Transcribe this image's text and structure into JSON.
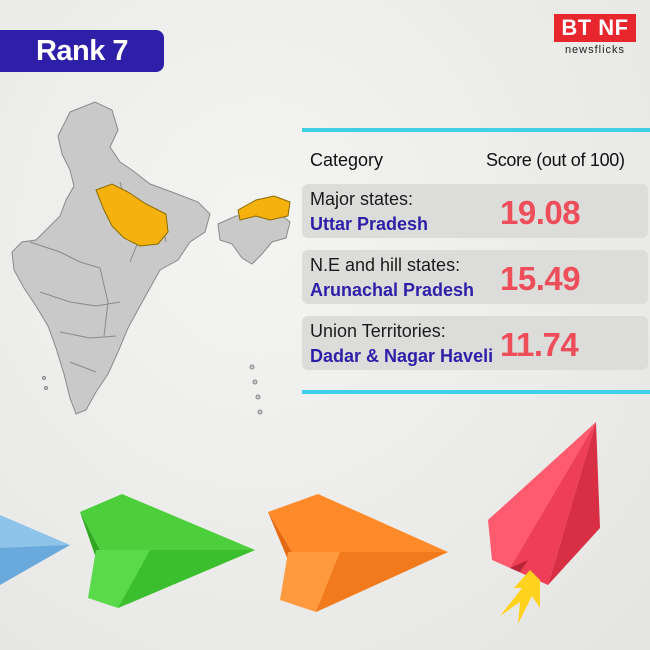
{
  "rank_label": "Rank 7",
  "logo": {
    "mark": "BT NF",
    "sub": "newsflicks"
  },
  "table": {
    "header_category": "Category",
    "header_score": "Score (out of 100)",
    "rows": [
      {
        "category": "Major states:",
        "name": "Uttar Pradesh",
        "score": "19.08"
      },
      {
        "category": "N.E and hill states:",
        "name": "Arunachal Pradesh",
        "score": "15.49"
      },
      {
        "category": "Union Territories:",
        "name": "Dadar & Nagar Haveli",
        "score": "11.74"
      }
    ]
  },
  "colors": {
    "accent_blue": "#2d1fa8",
    "score_red": "#ee4d5a",
    "highlight_state": "#f5b20e",
    "rule_cyan": "#3ed0e4"
  }
}
